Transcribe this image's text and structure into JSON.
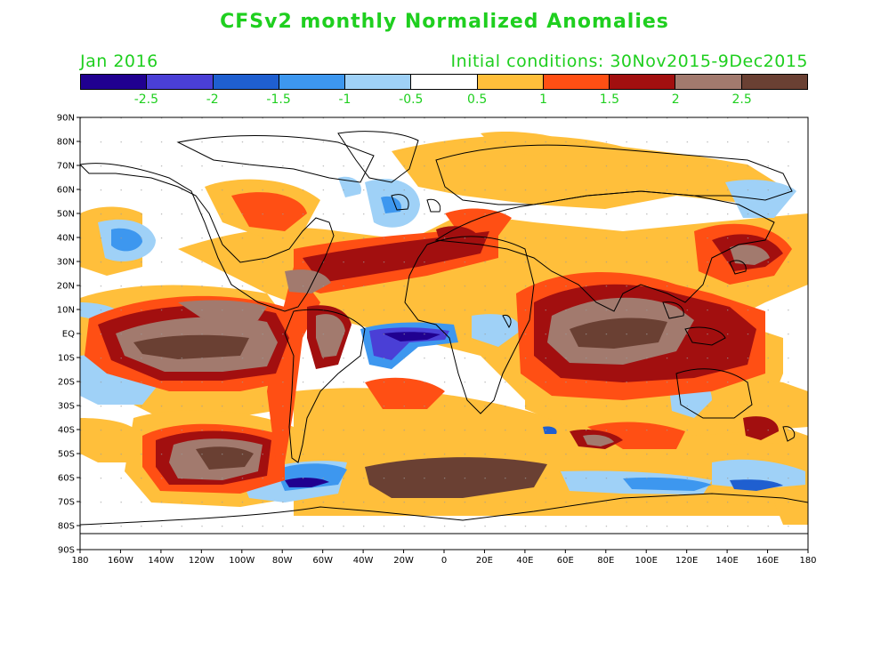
{
  "title": "CFSv2 monthly Normalized Anomalies",
  "month": "Jan 2016",
  "initial_conditions": "Initial conditions: 30Nov2015-9Dec2015",
  "colorbar": {
    "colors": [
      "#200090",
      "#4a3fd6",
      "#1f5fd0",
      "#3d97ef",
      "#9fd1f7",
      "#ffffff",
      "#ffbf3b",
      "#ff4f14",
      "#a20f0f",
      "#a27a6e",
      "#6a4033"
    ],
    "labels": [
      "-2.5",
      "-2",
      "-1.5",
      "-1",
      "-0.5",
      "0.5",
      "1",
      "1.5",
      "2",
      "2.5"
    ]
  },
  "axes": {
    "lat_labels": [
      "90N",
      "80N",
      "70N",
      "60N",
      "50N",
      "40N",
      "30N",
      "20N",
      "10N",
      "EQ",
      "10S",
      "20S",
      "30S",
      "40S",
      "50S",
      "60S",
      "70S",
      "80S",
      "90S"
    ],
    "lon_labels": [
      "180",
      "160W",
      "140W",
      "120W",
      "100W",
      "80W",
      "60W",
      "40W",
      "20W",
      "0",
      "20E",
      "40E",
      "60E",
      "80E",
      "100E",
      "120E",
      "140E",
      "160E",
      "180"
    ]
  }
}
